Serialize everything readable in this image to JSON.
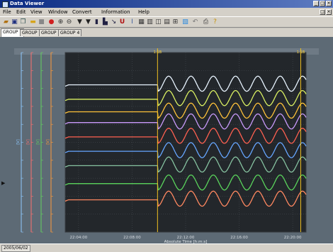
{
  "window": {
    "title": "Data Viewer"
  },
  "menu": [
    "File",
    "Edit",
    "View",
    "Window",
    "Convert",
    "Information",
    "Help"
  ],
  "tabs": [
    "GROUP 1",
    "GROUP 2",
    "GROUP 3",
    "GROUP 4"
  ],
  "active_tab": 0,
  "toolbar": [
    "open-icon",
    "save-icon",
    "copy-icon",
    "folder-icon",
    "stop-icon",
    "record-icon",
    "zoom-in-icon",
    "zoom-out-icon",
    "cursor-a-icon",
    "cursor-b-icon",
    "bar-icon",
    "graph-icon",
    "line-icon",
    "u-icon",
    "marker-icon",
    "grid-icon",
    "layout-icon",
    "table-icon",
    "print-preview-icon",
    "settings-icon",
    "export-icon",
    "undo-icon",
    "print-icon",
    "help-icon"
  ],
  "cursors": {
    "a_label": "1:1B",
    "b_label": "1:1B"
  },
  "status": {
    "date": "2005/06/02"
  },
  "chart_data": {
    "type": "line",
    "xlabel": "Absolute Time [h:m:s]",
    "x_ticks": [
      "22:04:00",
      "22:08:00",
      "22:12:00",
      "22:16:00",
      "22:20:00"
    ],
    "xlim_minutes": [
      0,
      18
    ],
    "cursor_a_minute": 6.9,
    "cursor_b_minute": 17.6,
    "oscillation_start_minute": 6.9,
    "waves_per_minute": 0.6,
    "ylim": [
      0,
      100
    ],
    "left_axes": [
      {
        "color": "#8fc9ff",
        "label": "[V]"
      },
      {
        "color": "#ff7070",
        "label": "[V]"
      },
      {
        "color": "#62d35e",
        "label": "[V]"
      },
      {
        "color": "#ff9a3a",
        "label": "[V]"
      }
    ],
    "series": [
      {
        "color": "#e8f4ff",
        "baseline": 82,
        "amplitude": 4.2
      },
      {
        "color": "#d9ef62",
        "baseline": 74,
        "amplitude": 4.2
      },
      {
        "color": "#ffc23a",
        "baseline": 67,
        "amplitude": 4.2
      },
      {
        "color": "#c99afb",
        "baseline": 61,
        "amplitude": 4.2
      },
      {
        "color": "#ff6050",
        "baseline": 53,
        "amplitude": 4.2
      },
      {
        "color": "#66a6ff",
        "baseline": 45,
        "amplitude": 4.2
      },
      {
        "color": "#86c2a0",
        "baseline": 37,
        "amplitude": 4.2
      },
      {
        "color": "#5ad45c",
        "baseline": 27,
        "amplitude": 4.2
      },
      {
        "color": "#ff8860",
        "baseline": 18,
        "amplitude": 4.2
      }
    ]
  }
}
